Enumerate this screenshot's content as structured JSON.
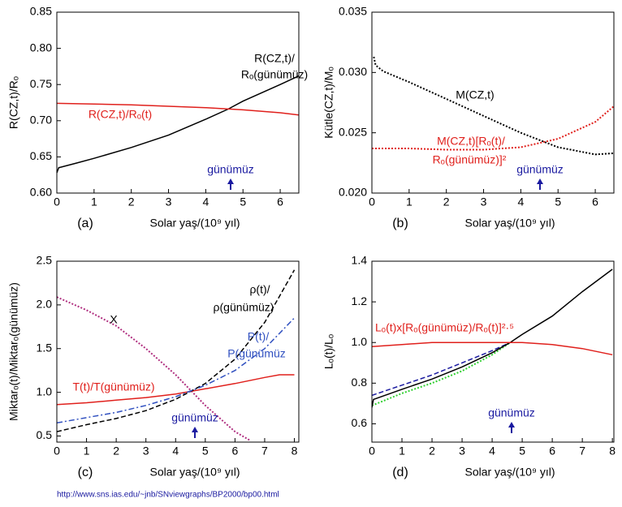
{
  "chart_data": [
    {
      "type": "line",
      "panel": "(a)",
      "xlabel": "Solar yaş/(10⁹ yıl)",
      "ylabel": "R(CZ,t)/Rₒ",
      "xlim": [
        0,
        6.5
      ],
      "xticks": [
        0,
        1,
        2,
        3,
        4,
        5,
        6
      ],
      "ylim": [
        0.6,
        0.85
      ],
      "yticks": [
        {
          "value": 0.6,
          "label": "0.60"
        },
        0.65,
        {
          "value": 0.7,
          "label": "0.70"
        },
        0.75,
        {
          "value": 0.8,
          "label": "0.80"
        },
        0.85
      ],
      "series": [
        {
          "color": "#000000",
          "style": "solid",
          "x": [
            0,
            0.05,
            0.5,
            1,
            2,
            3,
            4,
            4.6,
            5,
            6,
            6.5
          ],
          "values": [
            0.628,
            0.635,
            0.641,
            0.648,
            0.663,
            0.68,
            0.702,
            0.716,
            0.727,
            0.75,
            0.762
          ]
        },
        {
          "color": "#e0201c",
          "style": "solid",
          "x": [
            0,
            1,
            2,
            3,
            4,
            5,
            6,
            6.5
          ],
          "values": [
            0.724,
            0.723,
            0.722,
            0.72,
            0.718,
            0.715,
            0.711,
            0.708
          ]
        }
      ],
      "annotations": [
        {
          "text": "R(CZ,t)/",
          "color": "#000000"
        },
        {
          "text": "Rₒ(günümüz)",
          "color": "#000000"
        },
        {
          "text": "R(CZ,t)/Rₒ(t)",
          "color": "#e0201c"
        },
        {
          "text": "günümüz",
          "color": "#1a1aa0",
          "arrow": true
        }
      ]
    },
    {
      "type": "line",
      "panel": "(b)",
      "xlabel": "Solar yaş/(10⁹ yıl)",
      "ylabel": "Kütle(CZ,t)/Mₒ",
      "xlim": [
        0,
        6.5
      ],
      "xticks": [
        0,
        1,
        2,
        3,
        4,
        5,
        6
      ],
      "ylim": [
        0.02,
        0.035
      ],
      "yticks": [
        {
          "value": 0.02,
          "label": "0.020"
        },
        0.025,
        {
          "value": 0.03,
          "label": "0.030"
        },
        0.035
      ],
      "series": [
        {
          "color": "#000000",
          "style": "dotted",
          "x": [
            0.05,
            0.1,
            0.3,
            1,
            2,
            3,
            4,
            5,
            6,
            6.5
          ],
          "values": [
            0.0313,
            0.0306,
            0.0301,
            0.0292,
            0.0278,
            0.0264,
            0.025,
            0.0238,
            0.0232,
            0.0233
          ]
        },
        {
          "color": "#e0201c",
          "style": "dotted",
          "x": [
            0,
            1,
            2,
            3,
            4,
            5,
            6,
            6.5
          ],
          "values": [
            0.0237,
            0.0237,
            0.0236,
            0.0236,
            0.0238,
            0.0245,
            0.0259,
            0.0272
          ]
        }
      ],
      "annotations": [
        {
          "text": "M(CZ,t)",
          "color": "#000000"
        },
        {
          "text": "M(CZ,t)[Rₒ(t)/",
          "color": "#e0201c"
        },
        {
          "text": "Rₒ(günümüz)]²",
          "color": "#e0201c"
        },
        {
          "text": "günümüz",
          "color": "#1a1aa0",
          "arrow": true
        }
      ]
    },
    {
      "type": "line",
      "panel": "(c)",
      "xlabel": "Solar yaş/(10⁹ yıl)",
      "ylabel": "Miktarₒ(t)/Miktarₒ(günümüz)",
      "xlim": [
        0,
        8.15
      ],
      "xticks": [
        0,
        1,
        2,
        3,
        4,
        5,
        6,
        7,
        8
      ],
      "ylim": [
        0.43,
        2.5
      ],
      "yticks": [
        0.5,
        {
          "value": 1,
          "label": "1.0"
        },
        1.5,
        {
          "value": 2,
          "label": "2.0"
        },
        2.5
      ],
      "series": [
        {
          "color": "#b03080",
          "style": "dotted",
          "x": [
            0,
            1,
            2,
            3,
            4,
            5,
            6,
            6.5
          ],
          "values": [
            2.09,
            1.94,
            1.76,
            1.5,
            1.2,
            0.85,
            0.55,
            0.45
          ]
        },
        {
          "color": "#e0201c",
          "style": "solid",
          "x": [
            0,
            1,
            2,
            3,
            4,
            5,
            6,
            7,
            7.5,
            8
          ],
          "values": [
            0.86,
            0.88,
            0.91,
            0.94,
            0.98,
            1.04,
            1.1,
            1.17,
            1.2,
            1.2
          ]
        },
        {
          "color": "#000000",
          "style": "dashed",
          "x": [
            0,
            1,
            2,
            3,
            4,
            5,
            6,
            7,
            8
          ],
          "values": [
            0.55,
            0.63,
            0.7,
            0.79,
            0.92,
            1.1,
            1.38,
            1.8,
            2.4
          ]
        },
        {
          "color": "#3050c0",
          "style": "dashdot",
          "x": [
            0,
            1,
            2,
            3,
            4,
            5,
            6,
            7,
            8
          ],
          "values": [
            0.65,
            0.71,
            0.77,
            0.85,
            0.95,
            1.08,
            1.25,
            1.5,
            1.85
          ]
        }
      ],
      "annotations": [
        {
          "text": "X",
          "color": "#000000"
        },
        {
          "text": "ρ(t)/",
          "color": "#000000"
        },
        {
          "text": "ρ(günümüz)",
          "color": "#000000"
        },
        {
          "text": "P(t)/",
          "color": "#3050c0"
        },
        {
          "text": "P(günümüz",
          "color": "#3050c0"
        },
        {
          "text": "T(t)/T(günümüz)",
          "color": "#e0201c"
        },
        {
          "text": "günümüz",
          "color": "#1a1aa0",
          "arrow": true
        }
      ]
    },
    {
      "type": "line",
      "panel": "(d)",
      "xlabel": "Solar yaş/(10⁹ yıl)",
      "ylabel": "Lₒ(t)/Lₒ",
      "xlim": [
        0,
        8.05
      ],
      "xticks": [
        0,
        1,
        2,
        3,
        4,
        5,
        6,
        7,
        8
      ],
      "ylim": [
        0.51,
        1.4
      ],
      "yticks": [
        0.6,
        0.8,
        {
          "value": 1,
          "label": "1.0"
        },
        1.2,
        1.4
      ],
      "series": [
        {
          "color": "#30d030",
          "style": "dotted",
          "x": [
            0,
            1,
            2,
            3,
            4,
            4.6
          ],
          "values": [
            0.69,
            0.75,
            0.8,
            0.86,
            0.94,
            1.0
          ]
        },
        {
          "color": "#1a1aa0",
          "style": "dashed",
          "x": [
            0,
            1,
            2,
            3,
            4,
            4.6
          ],
          "values": [
            0.74,
            0.79,
            0.84,
            0.9,
            0.96,
            1.0
          ]
        },
        {
          "color": "#000000",
          "style": "solid",
          "x": [
            0,
            0.05,
            1,
            2,
            3,
            4,
            4.6,
            5,
            6,
            7,
            8
          ],
          "values": [
            0.68,
            0.72,
            0.77,
            0.82,
            0.88,
            0.95,
            1.0,
            1.04,
            1.13,
            1.25,
            1.36
          ]
        },
        {
          "color": "#e0201c",
          "style": "solid",
          "x": [
            0,
            1,
            2,
            3,
            4,
            5,
            6,
            7,
            8
          ],
          "values": [
            0.98,
            0.99,
            1.0,
            1.0,
            1.0,
            1.0,
            0.99,
            0.97,
            0.94
          ]
        }
      ],
      "annotations": [
        {
          "text": "Lₒ(t)x[Rₒ(günümüz)/Rₒ(t)]²·⁵",
          "color": "#e0201c"
        },
        {
          "text": "günümüz",
          "color": "#1a1aa0",
          "arrow": true
        }
      ]
    }
  ],
  "source_url": "http://www.sns.ias.edu/~jnb/SNviewgraphs/BP2000/bp00.html"
}
